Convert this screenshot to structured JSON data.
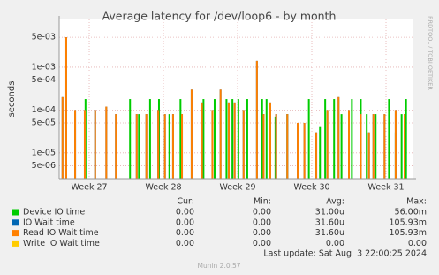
{
  "chart_data": {
    "type": "spike",
    "title": "Average latency for /dev/loop6 - by month",
    "y_label": "seconds",
    "side_label": "RRDTOOL / TOBI OETIKER",
    "log_y": true,
    "grid": true,
    "xlim": [
      26.595,
      31.357
    ],
    "xticks": [
      {
        "value": 27,
        "label": "Week 27"
      },
      {
        "value": 28,
        "label": "Week 28"
      },
      {
        "value": 29,
        "label": "Week 29"
      },
      {
        "value": 30,
        "label": "Week 30"
      },
      {
        "value": 31,
        "label": "Week 31"
      }
    ],
    "ylim": [
      2.5e-06,
      0.013
    ],
    "yticks": [
      {
        "value": 5e-06,
        "label": "5e-06"
      },
      {
        "value": 1e-05,
        "label": "1e-05"
      },
      {
        "value": 5e-05,
        "label": "5e-05"
      },
      {
        "value": 0.0001,
        "label": "1e-04"
      },
      {
        "value": 0.0005,
        "label": "5e-04"
      },
      {
        "value": 0.001,
        "label": "1e-03"
      },
      {
        "value": 0.005,
        "label": "5e-03"
      }
    ],
    "series": [
      {
        "name": "Device IO time",
        "color": "#00cc00",
        "x": [
          26.95,
          27.55,
          27.67,
          27.82,
          27.94,
          28.08,
          28.23,
          28.54,
          28.69,
          28.85,
          28.93,
          29.01,
          29.13,
          29.33,
          29.39,
          29.51,
          29.67,
          29.96,
          30.11,
          30.18,
          30.3,
          30.4,
          30.54,
          30.66,
          30.74,
          30.86,
          31.04,
          31.13,
          31.21,
          31.27
        ],
        "values": [
          0.00018,
          0.00018,
          8e-05,
          0.00018,
          0.00018,
          8e-05,
          0.00018,
          0.00018,
          0.00018,
          0.00018,
          0.00018,
          0.00018,
          0.00018,
          0.00018,
          0.00018,
          7e-05,
          8e-05,
          0.00018,
          4e-05,
          0.00018,
          0.00018,
          8e-05,
          0.00018,
          0.00018,
          8e-05,
          8e-05,
          0.00018,
          3e-05,
          8e-05,
          0.00018
        ]
      },
      {
        "name": "IO Wait time",
        "color": "#0066b3",
        "x": [
          26.64,
          26.69,
          26.81,
          26.94,
          27.08,
          27.23,
          27.36,
          27.64,
          27.77,
          27.93,
          28.02,
          28.13,
          28.25,
          28.38,
          28.52,
          28.66,
          28.77,
          28.88,
          28.96,
          29.08,
          29.26,
          29.35,
          29.44,
          29.52,
          29.67,
          29.81,
          29.9,
          30.06,
          30.21,
          30.36,
          30.5,
          30.66,
          30.77,
          30.83,
          30.98,
          31.13,
          31.25
        ],
        "values": [
          0.0002,
          0.005,
          0.0001,
          0.0001,
          0.0001,
          0.00012,
          8e-05,
          8e-05,
          8e-05,
          0.0001,
          8e-05,
          8e-05,
          8e-05,
          0.0003,
          0.00015,
          0.0001,
          0.0003,
          0.00015,
          0.00015,
          0.0001,
          0.0014,
          8e-05,
          0.00015,
          8e-05,
          8e-05,
          5e-05,
          5e-05,
          3e-05,
          0.0001,
          0.0002,
          0.0001,
          8e-05,
          3e-05,
          8e-05,
          8e-05,
          0.0001,
          8e-05
        ]
      },
      {
        "name": "Read IO Wait time",
        "color": "#ff8000",
        "x": [
          26.64,
          26.69,
          26.81,
          26.94,
          27.08,
          27.23,
          27.36,
          27.64,
          27.77,
          27.93,
          28.02,
          28.13,
          28.25,
          28.38,
          28.52,
          28.66,
          28.77,
          28.88,
          28.96,
          29.08,
          29.26,
          29.35,
          29.44,
          29.52,
          29.67,
          29.81,
          29.9,
          30.06,
          30.21,
          30.36,
          30.5,
          30.66,
          30.77,
          30.83,
          30.98,
          31.13,
          31.25
        ],
        "values": [
          0.0002,
          0.005,
          0.0001,
          0.0001,
          0.0001,
          0.00012,
          8e-05,
          8e-05,
          8e-05,
          0.0001,
          8e-05,
          8e-05,
          8e-05,
          0.0003,
          0.00015,
          0.0001,
          0.0003,
          0.00015,
          0.00015,
          0.0001,
          0.0014,
          8e-05,
          0.00015,
          8e-05,
          8e-05,
          5e-05,
          5e-05,
          3e-05,
          0.0001,
          0.0002,
          0.0001,
          8e-05,
          3e-05,
          8e-05,
          8e-05,
          0.0001,
          8e-05
        ]
      },
      {
        "name": "Write IO Wait time",
        "color": "#ffcc00",
        "x": [],
        "values": []
      }
    ],
    "legend_table": {
      "headers": [
        "Cur:",
        "Min:",
        "Avg:",
        "Max:"
      ],
      "rows": [
        [
          "0.00",
          "0.00",
          "31.00u",
          "56.00m"
        ],
        [
          "0.00",
          "0.00",
          "31.60u",
          "105.93m"
        ],
        [
          "0.00",
          "0.00",
          "31.60u",
          "105.93m"
        ],
        [
          "0.00",
          "0.00",
          "0.00",
          "0.00"
        ]
      ]
    },
    "last_update": "Last update: Sat Aug  3 22:00:25 2024",
    "footer": "Munin 2.0.57"
  }
}
